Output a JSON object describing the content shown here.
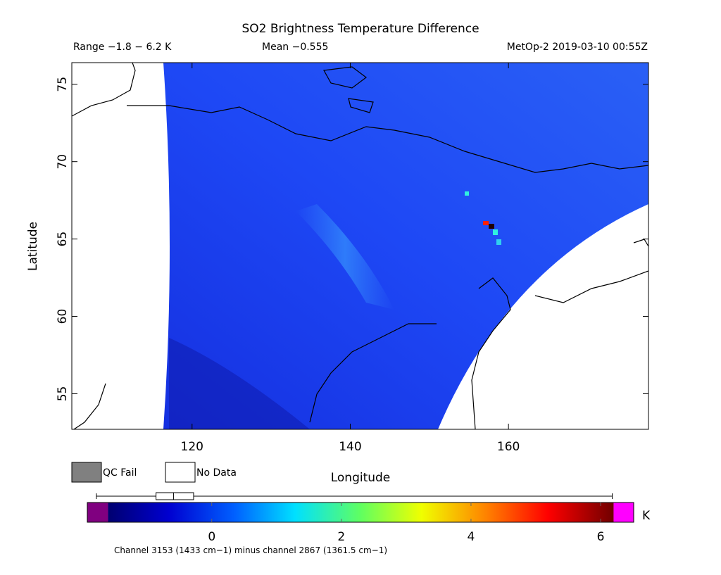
{
  "header": {
    "title": "SO2 Brightness Temperature Difference",
    "range": "Range −1.8 − 6.2 K",
    "mean": "Mean −0.555",
    "source": "MetOp-2 2019-03-10 00:55Z"
  },
  "map": {
    "x_label": "Longitude",
    "y_label": "Latitude",
    "xlim": [
      104.8,
      177.7
    ],
    "ylim": [
      52.7,
      76.4
    ],
    "xticks": [
      120,
      140,
      160
    ],
    "yticks": [
      55,
      60,
      65,
      70,
      75
    ]
  },
  "legend": {
    "qc_fail": "QC Fail",
    "no_data": "No Data"
  },
  "colorbar": {
    "lim": [
      -1.92,
      6.51
    ],
    "scale_range": [
      -1.6,
      6.2
    ],
    "ticks": [
      0,
      2,
      4,
      6
    ],
    "unit": "K",
    "boxplot": {
      "min": -1.78,
      "q1": -0.86,
      "median": -0.59,
      "q3": -0.28,
      "max": 6.18
    },
    "caption": "Channel 3153 (1433 cm−1) minus channel 2867 (1361.5 cm−1)"
  }
}
